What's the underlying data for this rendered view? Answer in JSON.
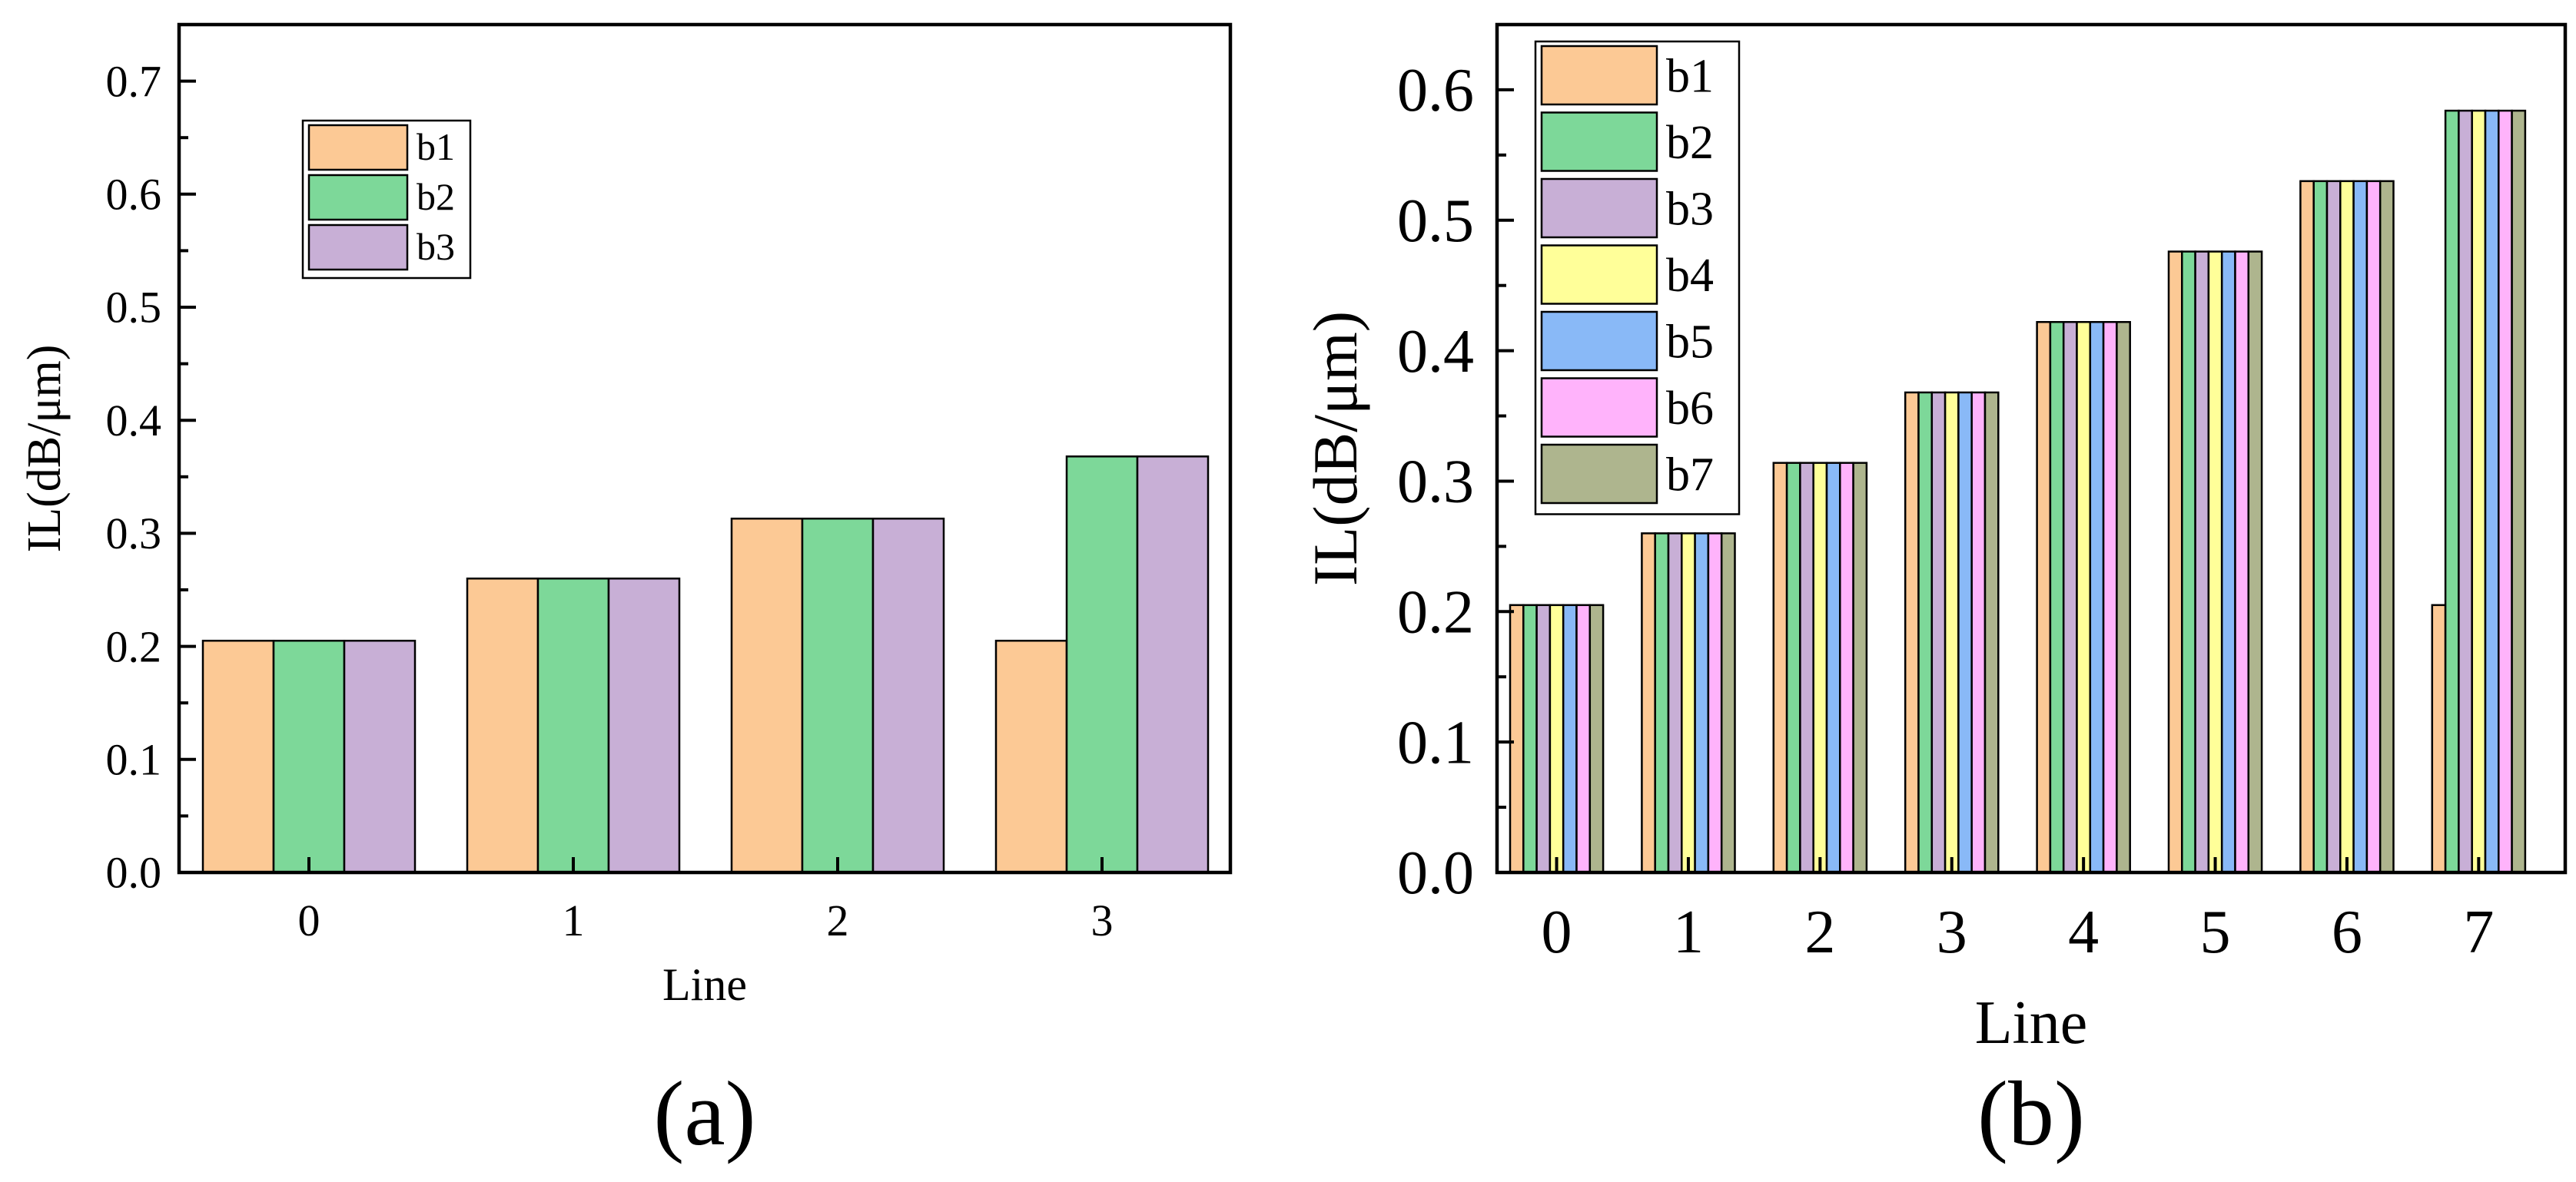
{
  "colors": {
    "b1": "#FCC995",
    "b2": "#7DD899",
    "b3": "#C8AFD6",
    "b4": "#FFFF99",
    "b5": "#89B9F7",
    "b6": "#FFB3FB",
    "b7": "#AEB58E"
  },
  "chart_data": [
    {
      "type": "bar",
      "panel_label": "(a)",
      "xlabel": "Line",
      "ylabel": "IL(dB/μm)",
      "categories": [
        "0",
        "1",
        "2",
        "3"
      ],
      "ylim": [
        0,
        0.75
      ],
      "yticks": [
        "0.0",
        "0.1",
        "0.2",
        "0.3",
        "0.4",
        "0.5",
        "0.6",
        "0.7"
      ],
      "legend_position": "upper-left",
      "series": [
        {
          "name": "b1",
          "values": [
            0.205,
            0.26,
            0.313,
            0.205
          ]
        },
        {
          "name": "b2",
          "values": [
            0.205,
            0.26,
            0.313,
            0.368
          ]
        },
        {
          "name": "b3",
          "values": [
            0.205,
            0.26,
            0.313,
            0.368
          ]
        }
      ]
    },
    {
      "type": "bar",
      "panel_label": "(b)",
      "xlabel": "Line",
      "ylabel": "IL(dB/μm)",
      "categories": [
        "0",
        "1",
        "2",
        "3",
        "4",
        "5",
        "6",
        "7"
      ],
      "ylim": [
        0,
        0.65
      ],
      "yticks": [
        "0.0",
        "0.1",
        "0.2",
        "0.3",
        "0.4",
        "0.5",
        "0.6"
      ],
      "legend_position": "top-left",
      "series": [
        {
          "name": "b1",
          "values": [
            0.205,
            0.26,
            0.314,
            0.368,
            0.422,
            0.476,
            0.53,
            0.205
          ]
        },
        {
          "name": "b2",
          "values": [
            0.205,
            0.26,
            0.314,
            0.368,
            0.422,
            0.476,
            0.53,
            0.584
          ]
        },
        {
          "name": "b3",
          "values": [
            0.205,
            0.26,
            0.314,
            0.368,
            0.422,
            0.476,
            0.53,
            0.584
          ]
        },
        {
          "name": "b4",
          "values": [
            0.205,
            0.26,
            0.314,
            0.368,
            0.422,
            0.476,
            0.53,
            0.584
          ]
        },
        {
          "name": "b5",
          "values": [
            0.205,
            0.26,
            0.314,
            0.368,
            0.422,
            0.476,
            0.53,
            0.584
          ]
        },
        {
          "name": "b6",
          "values": [
            0.205,
            0.26,
            0.314,
            0.368,
            0.422,
            0.476,
            0.53,
            0.584
          ]
        },
        {
          "name": "b7",
          "values": [
            0.205,
            0.26,
            0.314,
            0.368,
            0.422,
            0.476,
            0.53,
            0.584
          ]
        }
      ]
    }
  ]
}
